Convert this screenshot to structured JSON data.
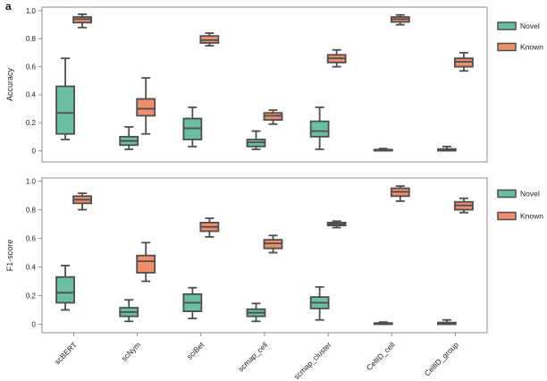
{
  "figure": {
    "panel_label": "a",
    "colors": {
      "novel": "#6ABEA1",
      "known": "#EE8E6B",
      "box_border": "#4E4E4E",
      "panel_border": "#8F8F8F",
      "tick_text": "#222222",
      "background": "#FFFFFF"
    },
    "legend": {
      "items": [
        {
          "label": "Novel",
          "color": "#6ABEA1"
        },
        {
          "label": "Known",
          "color": "#EE8E6B"
        }
      ]
    }
  },
  "chart_data": [
    {
      "type": "boxplot",
      "panel": "accuracy",
      "ylabel": "Accuracy",
      "ylim": [
        0,
        1.0
      ],
      "yticks": [
        0,
        0.2,
        0.4,
        0.6,
        0.8,
        1.0
      ],
      "ytick_labels": [
        "0",
        "0.2",
        "0.4",
        "0.6",
        "0.8",
        "1.0"
      ],
      "grid": false,
      "legend_position": "right",
      "categories": [
        "scBERT",
        "scNym",
        "sciBet",
        "scmap_cell",
        "scmap_cluster",
        "CellID_cell",
        "CellID_group"
      ],
      "series": [
        {
          "name": "Novel",
          "boxes": [
            {
              "low": 0.08,
              "q1": 0.12,
              "median": 0.27,
              "q3": 0.46,
              "high": 0.66
            },
            {
              "low": 0.01,
              "q1": 0.04,
              "median": 0.07,
              "q3": 0.1,
              "high": 0.17
            },
            {
              "low": 0.03,
              "q1": 0.08,
              "median": 0.16,
              "q3": 0.23,
              "high": 0.31
            },
            {
              "low": 0.01,
              "q1": 0.03,
              "median": 0.06,
              "q3": 0.08,
              "high": 0.14
            },
            {
              "low": 0.01,
              "q1": 0.1,
              "median": 0.14,
              "q3": 0.21,
              "high": 0.31
            },
            {
              "low": 0.0,
              "q1": 0.0,
              "median": 0.004,
              "q3": 0.008,
              "high": 0.015
            },
            {
              "low": 0.0,
              "q1": 0.0,
              "median": 0.005,
              "q3": 0.012,
              "high": 0.03
            }
          ]
        },
        {
          "name": "Known",
          "boxes": [
            {
              "low": 0.88,
              "q1": 0.915,
              "median": 0.94,
              "q3": 0.955,
              "high": 0.975
            },
            {
              "low": 0.12,
              "q1": 0.25,
              "median": 0.3,
              "q3": 0.37,
              "high": 0.52
            },
            {
              "low": 0.75,
              "q1": 0.77,
              "median": 0.79,
              "q3": 0.82,
              "high": 0.84
            },
            {
              "low": 0.19,
              "q1": 0.22,
              "median": 0.25,
              "q3": 0.27,
              "high": 0.29
            },
            {
              "low": 0.6,
              "q1": 0.63,
              "median": 0.66,
              "q3": 0.685,
              "high": 0.72
            },
            {
              "low": 0.9,
              "q1": 0.92,
              "median": 0.94,
              "q3": 0.955,
              "high": 0.97
            },
            {
              "low": 0.57,
              "q1": 0.6,
              "median": 0.635,
              "q3": 0.66,
              "high": 0.7
            }
          ]
        }
      ]
    },
    {
      "type": "boxplot",
      "panel": "f1-score",
      "ylabel": "F1-score",
      "ylim": [
        0,
        1.0
      ],
      "yticks": [
        0,
        0.2,
        0.4,
        0.6,
        0.8,
        1.0
      ],
      "ytick_labels": [
        "0",
        "0.2",
        "0.4",
        "0.6",
        "0.8",
        "1.0"
      ],
      "grid": false,
      "legend_position": "right",
      "categories": [
        "scBERT",
        "scNym",
        "sciBet",
        "scmap_cell",
        "scmap_cluster",
        "CellID_cell",
        "CellID_group"
      ],
      "series": [
        {
          "name": "Novel",
          "boxes": [
            {
              "low": 0.1,
              "q1": 0.15,
              "median": 0.22,
              "q3": 0.33,
              "high": 0.41
            },
            {
              "low": 0.02,
              "q1": 0.055,
              "median": 0.085,
              "q3": 0.115,
              "high": 0.17
            },
            {
              "low": 0.04,
              "q1": 0.09,
              "median": 0.15,
              "q3": 0.21,
              "high": 0.255
            },
            {
              "low": 0.02,
              "q1": 0.055,
              "median": 0.08,
              "q3": 0.105,
              "high": 0.145
            },
            {
              "low": 0.03,
              "q1": 0.11,
              "median": 0.15,
              "q3": 0.19,
              "high": 0.26
            },
            {
              "low": 0.0,
              "q1": 0.0,
              "median": 0.004,
              "q3": 0.008,
              "high": 0.015
            },
            {
              "low": 0.0,
              "q1": 0.0,
              "median": 0.005,
              "q3": 0.012,
              "high": 0.03
            }
          ]
        },
        {
          "name": "Known",
          "boxes": [
            {
              "low": 0.8,
              "q1": 0.845,
              "median": 0.87,
              "q3": 0.895,
              "high": 0.915
            },
            {
              "low": 0.3,
              "q1": 0.36,
              "median": 0.44,
              "q3": 0.48,
              "high": 0.57
            },
            {
              "low": 0.61,
              "q1": 0.65,
              "median": 0.68,
              "q3": 0.71,
              "high": 0.74
            },
            {
              "low": 0.5,
              "q1": 0.53,
              "median": 0.565,
              "q3": 0.59,
              "high": 0.62
            },
            {
              "low": 0.675,
              "q1": 0.69,
              "median": 0.7,
              "q3": 0.71,
              "high": 0.72
            },
            {
              "low": 0.86,
              "q1": 0.895,
              "median": 0.925,
              "q3": 0.95,
              "high": 0.965
            },
            {
              "low": 0.78,
              "q1": 0.8,
              "median": 0.83,
              "q3": 0.855,
              "high": 0.88
            }
          ]
        }
      ]
    }
  ]
}
